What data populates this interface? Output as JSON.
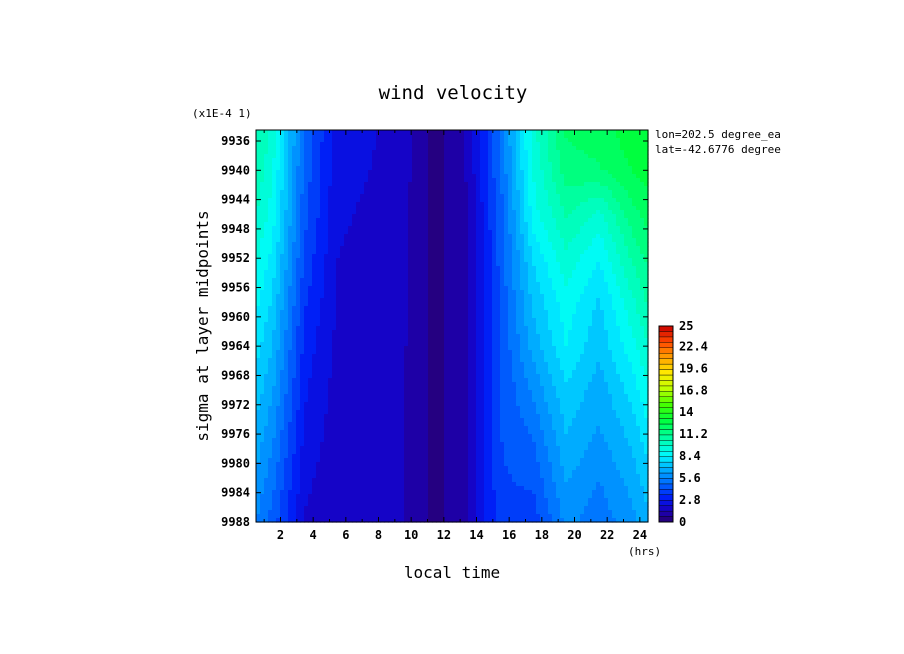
{
  "chart_data": {
    "type": "heatmap",
    "title": "wind velocity",
    "xlabel": "local time",
    "ylabel": "sigma at layer midpoints",
    "y_scale_note": "(x1E-4 1)",
    "x_unit": "(hrs)",
    "annotations": [
      "lon=202.5 degree_ea",
      "lat=-42.6776 degree"
    ],
    "x_ticks": [
      "2",
      "4",
      "6",
      "8",
      "10",
      "12",
      "14",
      "16",
      "18",
      "20",
      "22",
      "24"
    ],
    "y_ticks": [
      "9936",
      "9940",
      "9944",
      "9948",
      "9952",
      "9956",
      "9960",
      "9964",
      "9968",
      "9972",
      "9976",
      "9980",
      "9984",
      "9988"
    ],
    "xlim": [
      0.5,
      24.5
    ],
    "ylim": [
      9988,
      9934.5
    ],
    "colorbar": {
      "min": 0,
      "max": 25,
      "tick_labels": [
        "25",
        "22.4",
        "19.6",
        "16.8",
        "14",
        "11.2",
        "8.4",
        "5.6",
        "2.8",
        "0"
      ],
      "tick_values": [
        25,
        22.4,
        19.6,
        16.8,
        14,
        11.2,
        8.4,
        5.6,
        2.8,
        0
      ]
    },
    "x": [
      0.5,
      1.5,
      3.5,
      5.5,
      7.5,
      9.5,
      11.5,
      13.5,
      15.5,
      17.5,
      19.5,
      21.5,
      23.5,
      24.5
    ],
    "y": [
      9934.5,
      9940,
      9946,
      9952,
      9958,
      9964,
      9970,
      9976,
      9982,
      9988
    ],
    "z": [
      [
        10.6,
        9.6,
        4.8,
        2.4,
        2.2,
        1.7,
        0.4,
        1.5,
        5.2,
        9.6,
        12.0,
        12.3,
        13.0,
        13.2
      ],
      [
        10.4,
        9.2,
        4.6,
        2.3,
        2.1,
        1.7,
        0.4,
        1.5,
        5.0,
        9.2,
        11.6,
        11.8,
        12.6,
        12.9
      ],
      [
        9.8,
        8.8,
        4.4,
        2.2,
        2.0,
        1.6,
        0.4,
        1.4,
        4.6,
        8.8,
        10.6,
        9.6,
        11.6,
        12.2
      ],
      [
        9.2,
        8.2,
        4.0,
        2.1,
        1.9,
        1.6,
        0.4,
        1.4,
        4.5,
        7.8,
        9.6,
        8.4,
        10.6,
        11.4
      ],
      [
        8.6,
        7.6,
        3.6,
        2.0,
        1.8,
        1.6,
        0.4,
        1.4,
        4.4,
        7.2,
        8.8,
        7.6,
        9.6,
        10.6
      ],
      [
        8.0,
        7.0,
        3.2,
        1.9,
        1.8,
        1.5,
        0.4,
        1.4,
        4.3,
        6.6,
        8.4,
        7.2,
        8.8,
        9.8
      ],
      [
        7.4,
        6.4,
        2.9,
        1.8,
        1.7,
        1.5,
        0.4,
        1.4,
        4.2,
        5.8,
        7.6,
        6.6,
        8.0,
        9.0
      ],
      [
        6.8,
        5.8,
        2.6,
        1.7,
        1.7,
        1.5,
        0.4,
        1.4,
        4.2,
        5.0,
        7.0,
        6.2,
        7.2,
        8.2
      ],
      [
        6.2,
        5.2,
        2.3,
        1.6,
        1.6,
        1.5,
        0.4,
        1.4,
        4.1,
        4.4,
        6.4,
        5.6,
        6.6,
        7.4
      ],
      [
        5.6,
        4.6,
        2.0,
        1.5,
        1.6,
        1.5,
        0.4,
        1.4,
        4.0,
        3.8,
        5.8,
        5.2,
        6.0,
        6.8
      ]
    ]
  }
}
